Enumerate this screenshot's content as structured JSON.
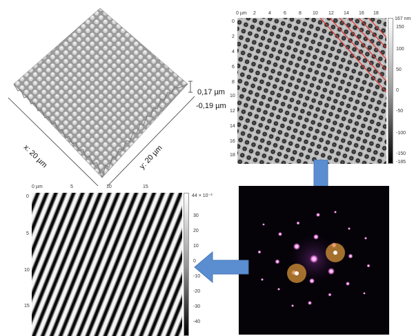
{
  "surface3d": {
    "x_label": "x: 20 µm",
    "y_label": "y: 20 µm",
    "z_max_label": "0,17 µm",
    "z_min_label": "-0,19 µm"
  },
  "afm_map": {
    "x_ticks": [
      "0 µm",
      "2",
      "4",
      "6",
      "8",
      "10",
      "12",
      "14",
      "16",
      "18"
    ],
    "y_ticks": [
      "0",
      "2",
      "4",
      "6",
      "8",
      "10",
      "12",
      "14",
      "16",
      "18"
    ],
    "colorbar_ticks": [
      "167 nm",
      "150",
      "100",
      "50",
      "0",
      "-50",
      "-100",
      "-150",
      "-185"
    ]
  },
  "fringe_map": {
    "x_ticks": [
      "0 µm",
      "5",
      "10",
      "15"
    ],
    "y_ticks": [
      "0",
      "5",
      "10",
      "15"
    ],
    "colorbar_ticks": [
      "44 × 10⁻³",
      "30",
      "20",
      "10",
      "0",
      "-10",
      "-20",
      "-30",
      "-40"
    ]
  },
  "colors": {
    "arrow": "#5b8ed1",
    "highlight_circle": "#e09a3a",
    "fft_background": "#050208",
    "fft_spot": "#ff8ff0",
    "red_lines": "#e23030"
  }
}
